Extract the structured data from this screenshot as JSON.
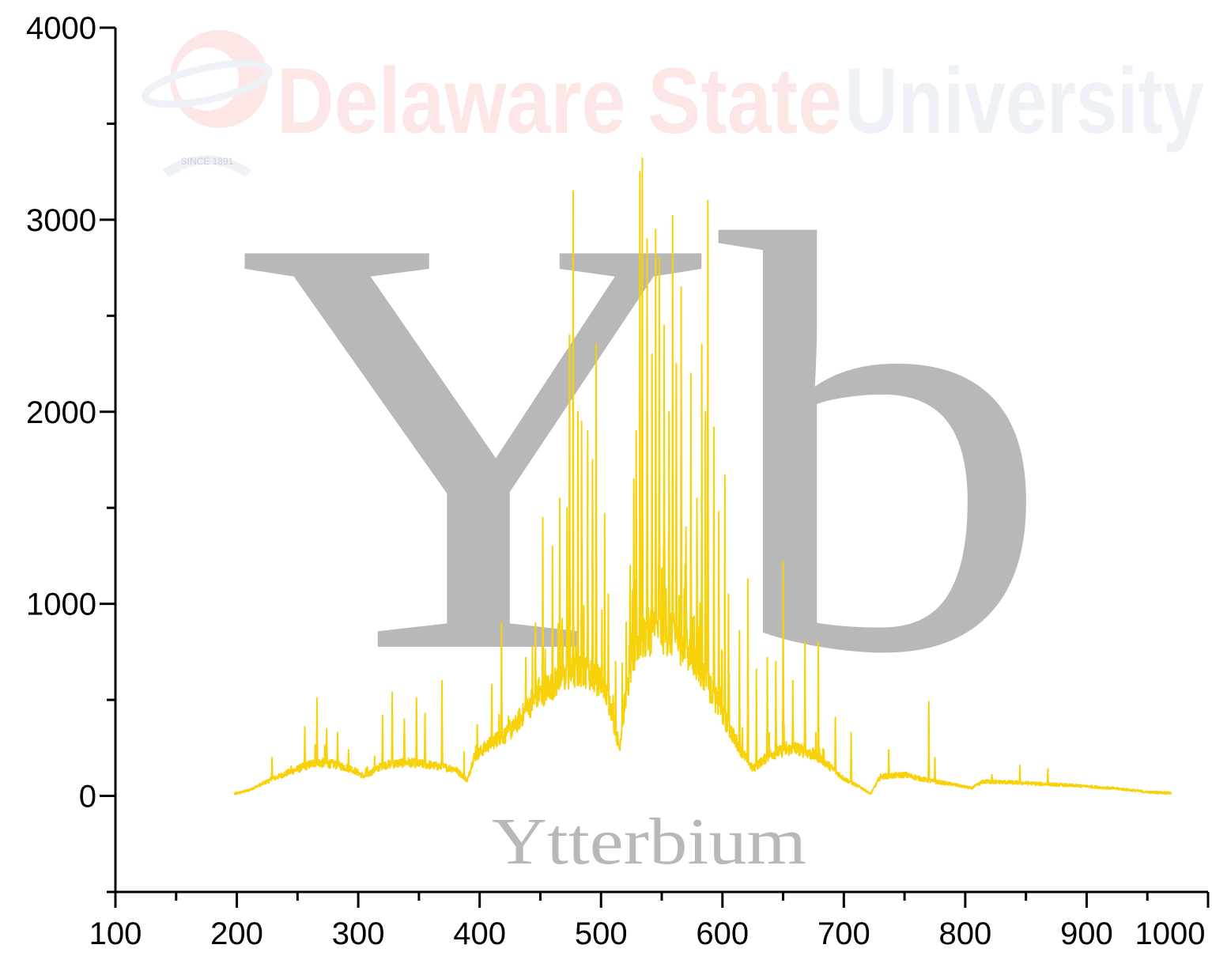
{
  "watermark": {
    "part1": "Delaware State",
    "part2": "University",
    "since": "SINCE 1891"
  },
  "element": {
    "symbol": "Yb",
    "name": "Ytterbium"
  },
  "colors": {
    "spectrum": "#f7d20a",
    "axis": "#000000",
    "symbol": "#b8b8b8",
    "watermark_red": "#fde6e6",
    "watermark_blue": "#eef1f6"
  },
  "chart_data": {
    "type": "line",
    "title": "",
    "xlabel": "",
    "ylabel": "",
    "xlim": [
      100,
      1000
    ],
    "ylim": [
      -500,
      4000
    ],
    "x_ticks": [
      100,
      200,
      300,
      400,
      500,
      600,
      700,
      800,
      900,
      1000
    ],
    "x_tick_labels": [
      "100",
      "200",
      "300",
      "400",
      "500",
      "600",
      "700",
      "800",
      "900",
      "1000"
    ],
    "y_ticks": [
      0,
      1000,
      2000,
      3000,
      4000
    ],
    "y_tick_labels": [
      "0",
      "1000",
      "2000",
      "3000",
      "4000"
    ],
    "x_minor_step": 50,
    "y_minor_step": 500,
    "grid": false,
    "legend": "none",
    "series": [
      {
        "baseline": [
          [
            198,
            10
          ],
          [
            210,
            30
          ],
          [
            230,
            90
          ],
          [
            250,
            140
          ],
          [
            265,
            175
          ],
          [
            280,
            165
          ],
          [
            295,
            140
          ],
          [
            305,
            100
          ],
          [
            320,
            160
          ],
          [
            340,
            175
          ],
          [
            360,
            160
          ],
          [
            380,
            140
          ],
          [
            390,
            80
          ],
          [
            395,
            200
          ],
          [
            410,
            280
          ],
          [
            425,
            330
          ],
          [
            440,
            460
          ],
          [
            455,
            560
          ],
          [
            470,
            620
          ],
          [
            485,
            660
          ],
          [
            500,
            590
          ],
          [
            508,
            470
          ],
          [
            515,
            250
          ],
          [
            520,
            500
          ],
          [
            530,
            800
          ],
          [
            545,
            870
          ],
          [
            560,
            830
          ],
          [
            575,
            720
          ],
          [
            590,
            560
          ],
          [
            605,
            360
          ],
          [
            615,
            240
          ],
          [
            625,
            140
          ],
          [
            640,
            220
          ],
          [
            660,
            250
          ],
          [
            680,
            200
          ],
          [
            700,
            90
          ],
          [
            715,
            40
          ],
          [
            722,
            10
          ],
          [
            730,
            100
          ],
          [
            750,
            110
          ],
          [
            770,
            80
          ],
          [
            790,
            60
          ],
          [
            805,
            40
          ],
          [
            815,
            75
          ],
          [
            840,
            70
          ],
          [
            870,
            60
          ],
          [
            900,
            50
          ],
          [
            930,
            35
          ],
          [
            950,
            20
          ],
          [
            970,
            15
          ]
        ],
        "peaks": [
          [
            229,
            200
          ],
          [
            256,
            360
          ],
          [
            266,
            510
          ],
          [
            274,
            350
          ],
          [
            283,
            330
          ],
          [
            292,
            240
          ],
          [
            320,
            420
          ],
          [
            328,
            540
          ],
          [
            338,
            400
          ],
          [
            348,
            510
          ],
          [
            355,
            430
          ],
          [
            369,
            600
          ],
          [
            398,
            370
          ],
          [
            410,
            580
          ],
          [
            418,
            900
          ],
          [
            425,
            360
          ],
          [
            438,
            720
          ],
          [
            446,
            900
          ],
          [
            452,
            1450
          ],
          [
            460,
            1300
          ],
          [
            466,
            1550
          ],
          [
            472,
            1500
          ],
          [
            474,
            2400
          ],
          [
            477,
            3150
          ],
          [
            481,
            2000
          ],
          [
            484,
            1950
          ],
          [
            489,
            1900
          ],
          [
            493,
            1750
          ],
          [
            496,
            2350
          ],
          [
            503,
            1470
          ],
          [
            506,
            1050
          ],
          [
            512,
            700
          ],
          [
            524,
            1200
          ],
          [
            527,
            1650
          ],
          [
            529,
            1900
          ],
          [
            532,
            3250
          ],
          [
            534,
            3320
          ],
          [
            538,
            2900
          ],
          [
            542,
            2300
          ],
          [
            545,
            2950
          ],
          [
            548,
            2800
          ],
          [
            552,
            2450
          ],
          [
            556,
            2000
          ],
          [
            559,
            3020
          ],
          [
            562,
            2250
          ],
          [
            566,
            2650
          ],
          [
            570,
            1400
          ],
          [
            574,
            2200
          ],
          [
            579,
            1550
          ],
          [
            583,
            2350
          ],
          [
            586,
            2000
          ],
          [
            588,
            3100
          ],
          [
            593,
            1920
          ],
          [
            597,
            1480
          ],
          [
            602,
            1670
          ],
          [
            605,
            1050
          ],
          [
            614,
            860
          ],
          [
            621,
            1130
          ],
          [
            628,
            660
          ],
          [
            637,
            720
          ],
          [
            644,
            700
          ],
          [
            650,
            1220
          ],
          [
            658,
            600
          ],
          [
            668,
            800
          ],
          [
            679,
            800
          ],
          [
            693,
            410
          ],
          [
            706,
            330
          ],
          [
            737,
            240
          ],
          [
            770,
            490
          ],
          [
            775,
            200
          ],
          [
            822,
            110
          ],
          [
            845,
            160
          ],
          [
            868,
            140
          ]
        ]
      }
    ]
  }
}
